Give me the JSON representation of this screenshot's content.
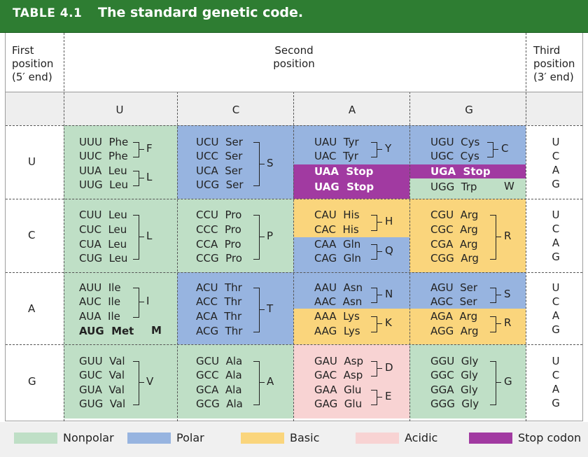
{
  "header": {
    "table_number": "TABLE 4.1",
    "title": "The standard genetic code."
  },
  "col_headers": {
    "first": [
      "First",
      "position",
      "(5′ end)"
    ],
    "second": [
      "Second",
      "position"
    ],
    "third": [
      "Third",
      "position",
      "(3′ end)"
    ],
    "bases": [
      "U",
      "C",
      "A",
      "G"
    ]
  },
  "first_bases": [
    "U",
    "C",
    "A",
    "G"
  ],
  "third_bases": [
    "U",
    "C",
    "A",
    "G"
  ],
  "colors": {
    "nonpolar": "#bfdfc6",
    "polar": "#97b4e0",
    "basic": "#fad57c",
    "acidic": "#f8d3d3",
    "stop": "#a13aa1",
    "header": "#2e7d32"
  },
  "codons": {
    "UU": [
      "UUU  Phe",
      "UUC  Phe",
      "UUA  Leu",
      "UUG  Leu"
    ],
    "UC": [
      "UCU  Ser",
      "UCC  Ser",
      "UCA  Ser",
      "UCG  Ser"
    ],
    "UA": [
      "UAU  Tyr",
      "UAC  Tyr",
      "UAA  Stop",
      "UAG  Stop"
    ],
    "UG": [
      "UGU  Cys",
      "UGC  Cys",
      "UGA  Stop",
      "UGG  Trp"
    ],
    "CU": [
      "CUU  Leu",
      "CUC  Leu",
      "CUA  Leu",
      "CUG  Leu"
    ],
    "CC": [
      "CCU  Pro",
      "CCC  Pro",
      "CCA  Pro",
      "CCG  Pro"
    ],
    "CA": [
      "CAU  His",
      "CAC  His",
      "CAA  Gln",
      "CAG  Gln"
    ],
    "CG": [
      "CGU  Arg",
      "CGC  Arg",
      "CGA  Arg",
      "CGG  Arg"
    ],
    "AU": [
      "AUU  Ile",
      "AUC  Ile",
      "AUA  Ile",
      "AUG  Met"
    ],
    "AC": [
      "ACU  Thr",
      "ACC  Thr",
      "ACA  Thr",
      "ACG  Thr"
    ],
    "AA": [
      "AAU  Asn",
      "AAC  Asn",
      "AAA  Lys",
      "AAG  Lys"
    ],
    "AG": [
      "AGU  Ser",
      "AGC  Ser",
      "AGA  Arg",
      "AGG  Arg"
    ],
    "GU": [
      "GUU  Val",
      "GUC  Val",
      "GUA  Val",
      "GUG  Val"
    ],
    "GC": [
      "GCU  Ala",
      "GCC  Ala",
      "GCA  Ala",
      "GCG  Ala"
    ],
    "GA": [
      "GAU  Asp",
      "GAC  Asp",
      "GAA  Glu",
      "GAG  Glu"
    ],
    "GG": [
      "GGU  Gly",
      "GGC  Gly",
      "GGA  Gly",
      "GGG  Gly"
    ]
  },
  "letters": {
    "UU1": "F",
    "UU2": "L",
    "UC": "S",
    "UA": "Y",
    "UG1": "C",
    "UG2": "W",
    "CU": "L",
    "CC": "P",
    "CA1": "H",
    "CA2": "Q",
    "CG": "R",
    "AU1": "I",
    "AU2": "M",
    "AC": "T",
    "AA1": "N",
    "AA2": "K",
    "AG1": "S",
    "AG2": "R",
    "GU": "V",
    "GC": "A",
    "GA1": "D",
    "GA2": "E",
    "GG": "G"
  },
  "legend": [
    {
      "label": "Nonpolar",
      "color": "#bfdfc6"
    },
    {
      "label": "Polar",
      "color": "#97b4e0"
    },
    {
      "label": "Basic",
      "color": "#fad57c"
    },
    {
      "label": "Acidic",
      "color": "#f8d3d3"
    },
    {
      "label": "Stop codon",
      "color": "#a13aa1"
    }
  ]
}
